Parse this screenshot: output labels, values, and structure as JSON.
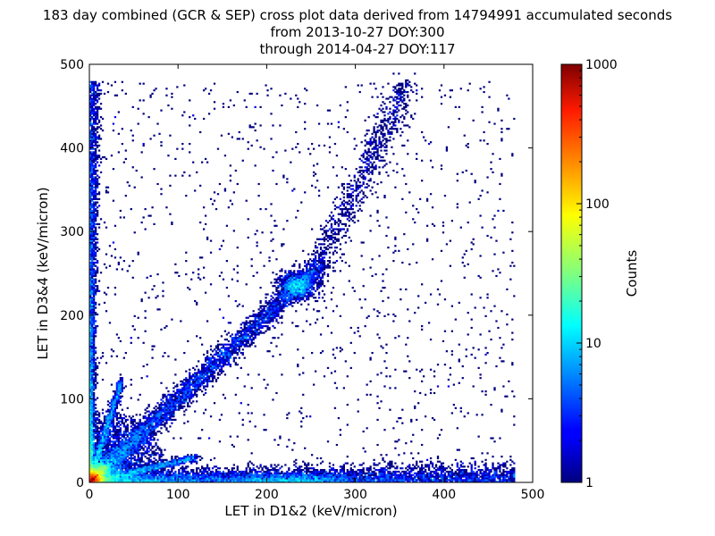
{
  "chart_data": {
    "type": "heatmap",
    "title": "183 day combined (GCR & SEP) cross plot data derived from 14794991 accumulated seconds",
    "subtitle_line1": "from 2013-10-27 DOY:300",
    "subtitle_line2": "through 2014-04-27 DOY:117",
    "xlabel": "LET in D1&2 (keV/micron)",
    "ylabel": "LET in D3&4 (keV/micron)",
    "xlim": [
      0,
      500
    ],
    "ylim": [
      0,
      500
    ],
    "x_ticks": [
      "0",
      "100",
      "200",
      "300",
      "400",
      "500"
    ],
    "y_ticks": [
      "0",
      "100",
      "200",
      "300",
      "400",
      "500"
    ],
    "colorbar": {
      "label": "Counts",
      "scale": "log",
      "range": [
        1,
        1000
      ],
      "ticks": [
        "1",
        "10",
        "100",
        "1000"
      ],
      "colormap": "jet"
    },
    "features": [
      {
        "name": "diagonal band",
        "from": [
          5,
          5
        ],
        "to": [
          250,
          250
        ]
      },
      {
        "name": "dense cluster",
        "x": 235,
        "y": 235,
        "level": 30
      },
      {
        "name": "upper branch",
        "from": [
          250,
          240
        ],
        "to": [
          360,
          480
        ]
      },
      {
        "name": "horizontal band near y=0",
        "from": [
          0,
          5
        ],
        "to": [
          500,
          5
        ]
      },
      {
        "name": "vertical band near x=0",
        "from": [
          1,
          0
        ],
        "to": [
          1,
          500
        ]
      },
      {
        "name": "hot spot near origin",
        "x": 5,
        "y": 5,
        "level": 1000
      }
    ],
    "grid": false
  }
}
